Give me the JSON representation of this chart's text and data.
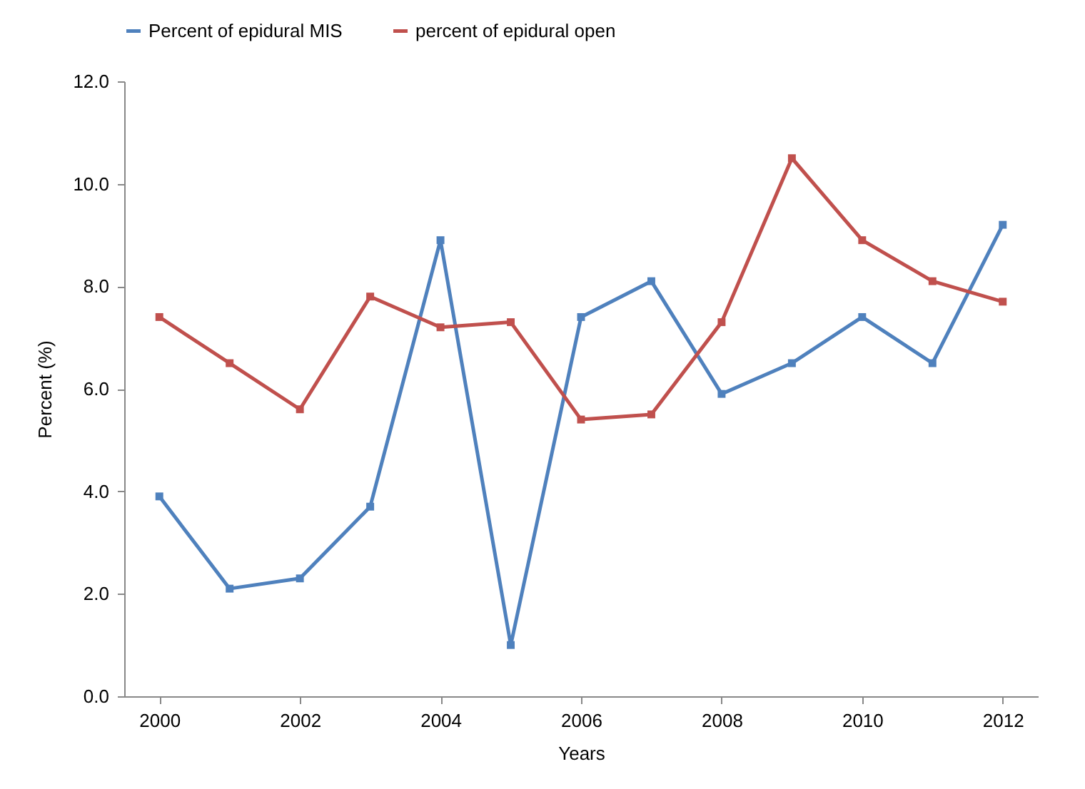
{
  "chart_data": {
    "type": "line",
    "xlabel": "Years",
    "ylabel": "Percent (%)",
    "x": [
      2000,
      2001,
      2002,
      2003,
      2004,
      2005,
      2006,
      2007,
      2008,
      2009,
      2010,
      2011,
      2012
    ],
    "series": [
      {
        "name": "Percent of epidural MIS",
        "color": "#4f81bd",
        "values": [
          3.9,
          2.1,
          2.3,
          3.7,
          8.9,
          1.0,
          7.4,
          8.1,
          5.9,
          6.5,
          7.4,
          6.5,
          9.2
        ]
      },
      {
        "name": "percent of epidural open",
        "color": "#c0504d",
        "values": [
          7.4,
          6.5,
          5.6,
          7.8,
          7.2,
          7.3,
          5.4,
          5.5,
          7.3,
          10.5,
          8.9,
          8.1,
          7.7
        ]
      }
    ],
    "xlim": [
      1999.5,
      2012.5
    ],
    "xticks": [
      2000,
      2002,
      2004,
      2006,
      2008,
      2010,
      2012
    ],
    "ylim": [
      0,
      12
    ],
    "yticks": [
      {
        "value": 0,
        "label": "0.0"
      },
      {
        "value": 2,
        "label": "2.0"
      },
      {
        "value": 4,
        "label": "4.0"
      },
      {
        "value": 6,
        "label": "6.0"
      },
      {
        "value": 8,
        "label": "8.0"
      },
      {
        "value": 10,
        "label": "10.0"
      },
      {
        "value": 12,
        "label": "12.0"
      }
    ],
    "grid": false,
    "legend": "top",
    "marker": "square",
    "line_style": "solid"
  }
}
